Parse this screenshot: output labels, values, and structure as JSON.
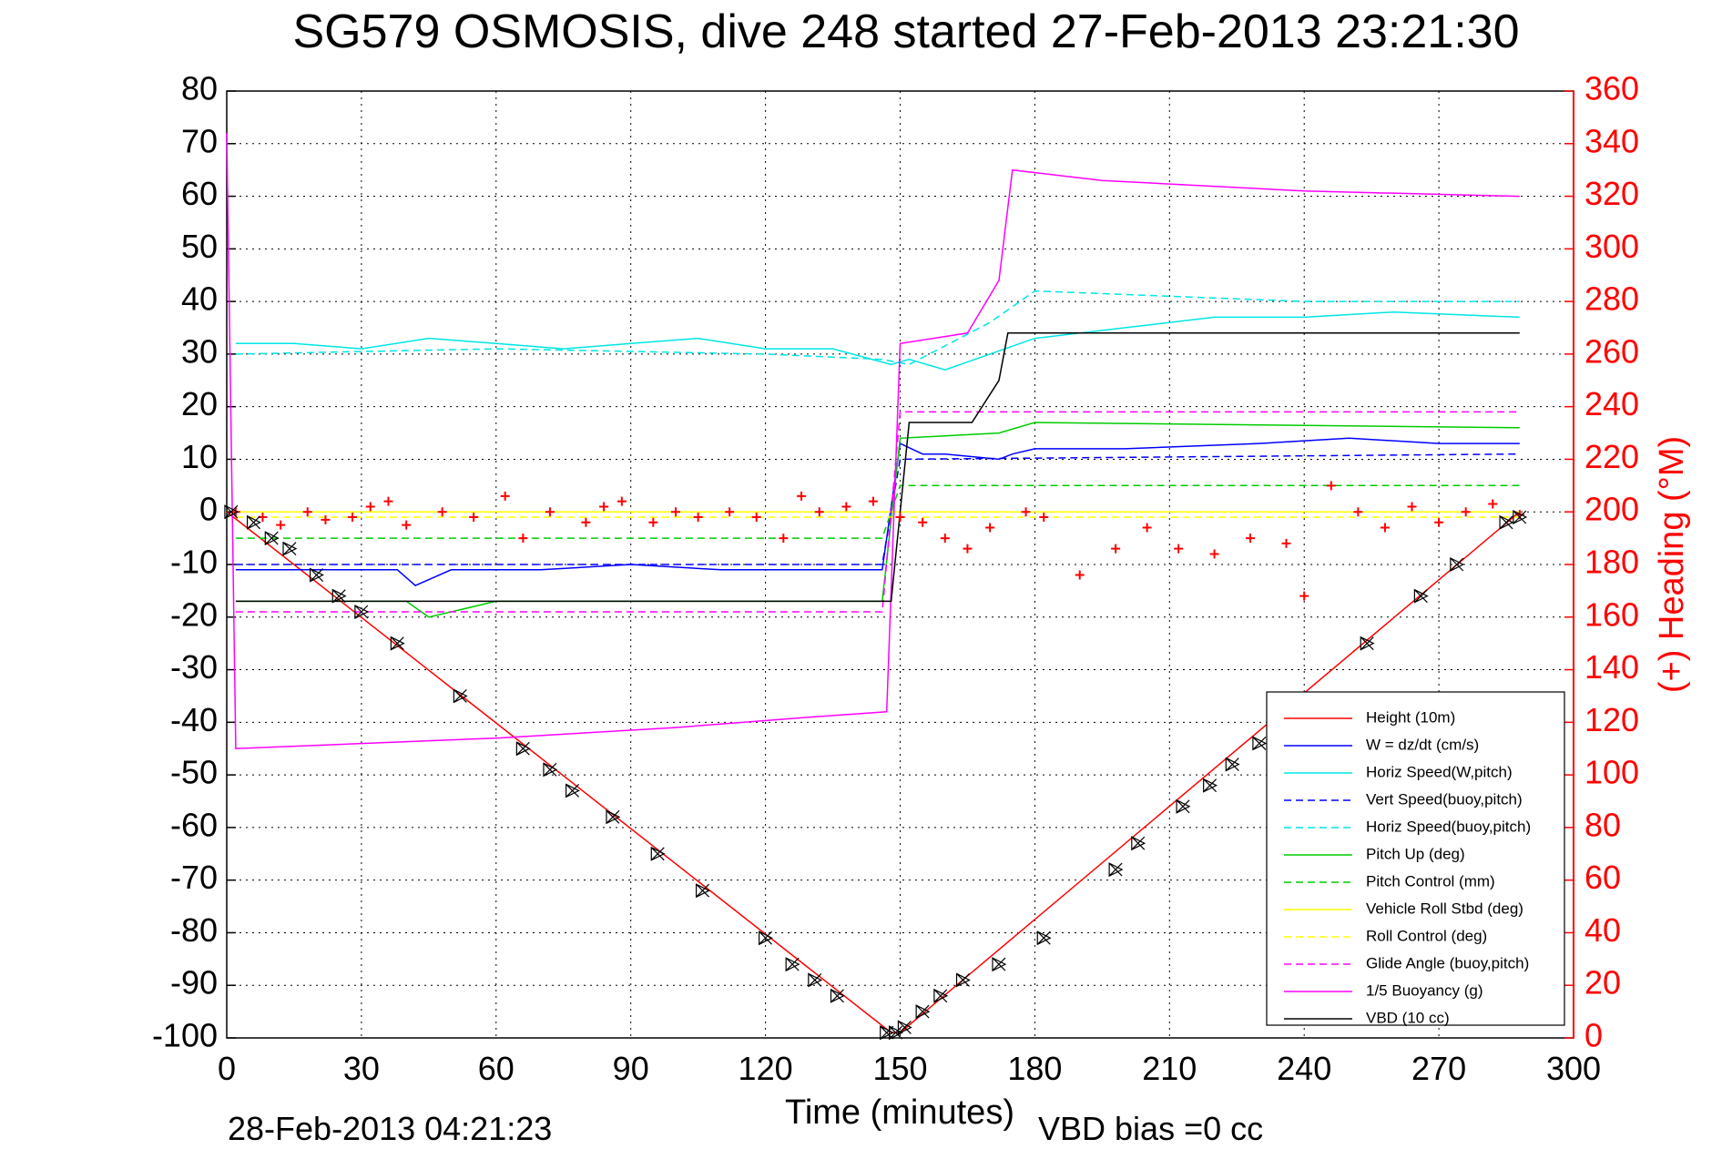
{
  "chart_data": {
    "type": "line",
    "title": "SG579 OSMOSIS, dive 248 started 27-Feb-2013 23:21:30",
    "xlabel": "Time (minutes)",
    "ylabel_right": "(+) Heading (°M)",
    "footer_left": "28-Feb-2013 04:21:23",
    "footer_right": "VBD bias =0 cc",
    "xlim": [
      0,
      300
    ],
    "ylim": [
      -100,
      80
    ],
    "ylim_right": [
      0,
      360
    ],
    "grid": true,
    "x_ticks": [
      "0",
      "30",
      "60",
      "90",
      "120",
      "150",
      "180",
      "210",
      "240",
      "270",
      "300"
    ],
    "y_ticks": [
      "80",
      "70",
      "60",
      "50",
      "40",
      "30",
      "20",
      "10",
      "0",
      "-10",
      "-20",
      "-30",
      "-40",
      "-50",
      "-60",
      "-70",
      "-80",
      "-90",
      "-100"
    ],
    "y_ticks_right": [
      "360",
      "340",
      "320",
      "300",
      "280",
      "260",
      "240",
      "220",
      "200",
      "180",
      "160",
      "140",
      "120",
      "100",
      "80",
      "60",
      "40",
      "20",
      "0"
    ],
    "legend_position": "bottom-right",
    "series": [
      {
        "name": "Height (10m)",
        "color": "#ff0000",
        "style": "solid",
        "x": [
          0,
          148,
          150,
          288
        ],
        "y": [
          0,
          -99,
          -99,
          0
        ]
      },
      {
        "name": "W = dz/dt (cm/s)",
        "color": "#0000ff",
        "style": "solid",
        "x": [
          2,
          20,
          38,
          42,
          50,
          60,
          70,
          90,
          110,
          130,
          146,
          150,
          155,
          160,
          172,
          175,
          180,
          200,
          230,
          250,
          270,
          288
        ],
        "y": [
          -11,
          -11,
          -11,
          -14,
          -11,
          -11,
          -11,
          -10,
          -11,
          -11,
          -11,
          13,
          11,
          11,
          10,
          11,
          12,
          12,
          13,
          14,
          13,
          13
        ]
      },
      {
        "name": "Horiz Speed(W,pitch)",
        "color": "#00e5e5",
        "style": "solid",
        "x": [
          2,
          15,
          30,
          45,
          60,
          75,
          90,
          105,
          120,
          135,
          148,
          152,
          160,
          170,
          180,
          200,
          220,
          240,
          260,
          288
        ],
        "y": [
          32,
          32,
          31,
          33,
          32,
          31,
          32,
          33,
          31,
          31,
          28,
          29,
          27,
          30,
          33,
          35,
          37,
          37,
          38,
          37
        ]
      },
      {
        "name": "Vert Speed(buoy,pitch)",
        "color": "#0000ff",
        "style": "dashed",
        "x": [
          2,
          146,
          150,
          288
        ],
        "y": [
          -10,
          -10,
          10,
          11
        ]
      },
      {
        "name": "Horiz Speed(buoy,pitch)",
        "color": "#00e5e5",
        "style": "dashed",
        "x": [
          2,
          60,
          120,
          146,
          152,
          170,
          180,
          240,
          288
        ],
        "y": [
          30,
          31,
          30,
          29,
          28,
          36,
          42,
          40,
          40
        ]
      },
      {
        "name": "Pitch Up (deg)",
        "color": "#00cc00",
        "style": "solid",
        "x": [
          2,
          40,
          45,
          60,
          100,
          146,
          150,
          172,
          180,
          288
        ],
        "y": [
          -17,
          -17,
          -20,
          -17,
          -17,
          -17,
          14,
          15,
          17,
          16
        ]
      },
      {
        "name": "Pitch Control (mm)",
        "color": "#00cc00",
        "style": "dashed",
        "x": [
          2,
          146,
          150,
          288
        ],
        "y": [
          -5,
          -5,
          5,
          5
        ]
      },
      {
        "name": "Vehicle Roll Stbd (deg)",
        "color": "#ffff00",
        "style": "solid",
        "x": [
          2,
          146,
          150,
          288
        ],
        "y": [
          0,
          0,
          0,
          0
        ]
      },
      {
        "name": "Roll Control (deg)",
        "color": "#ffff00",
        "style": "dashed",
        "x": [
          2,
          288
        ],
        "y": [
          -1,
          -1
        ]
      },
      {
        "name": "Glide Angle (buoy,pitch)",
        "color": "#ff00ff",
        "style": "dashed",
        "x": [
          2,
          146,
          150,
          288
        ],
        "y": [
          -19,
          -19,
          19,
          19
        ]
      },
      {
        "name": "1/5 Buoyancy (g)",
        "color": "#ff00ff",
        "style": "solid",
        "x": [
          0,
          2,
          60,
          100,
          130,
          147,
          150,
          165,
          172,
          175,
          195,
          240,
          288
        ],
        "y": [
          72,
          -45,
          -43,
          -41,
          -39,
          -38,
          32,
          34,
          44,
          65,
          63,
          61,
          60
        ]
      },
      {
        "name": "VBD (10 cc)",
        "color": "#000000",
        "style": "solid",
        "x": [
          2,
          148,
          152,
          166,
          172,
          174,
          288
        ],
        "y": [
          -17,
          -17,
          17,
          17,
          25,
          34,
          34
        ]
      }
    ],
    "heading_markers": {
      "color": "#ff0000",
      "marker": "+",
      "axis": "right",
      "x": [
        2,
        8,
        12,
        18,
        22,
        28,
        32,
        36,
        40,
        48,
        55,
        62,
        66,
        72,
        80,
        84,
        88,
        95,
        100,
        105,
        112,
        118,
        124,
        128,
        132,
        138,
        144,
        150,
        155,
        160,
        165,
        170,
        178,
        182,
        190,
        198,
        205,
        212,
        220,
        228,
        236,
        240,
        246,
        252,
        258,
        264,
        270,
        276,
        282,
        288
      ],
      "y": [
        200,
        198,
        195,
        200,
        197,
        198,
        202,
        204,
        195,
        200,
        198,
        206,
        190,
        200,
        196,
        202,
        204,
        196,
        200,
        198,
        200,
        198,
        190,
        206,
        200,
        202,
        204,
        198,
        196,
        190,
        186,
        194,
        200,
        198,
        176,
        186,
        194,
        186,
        184,
        190,
        188,
        168,
        210,
        200,
        194,
        202,
        196,
        200,
        203,
        199
      ]
    },
    "depth_markers": {
      "color": "#000000",
      "marker": "x-triangle",
      "x": [
        1,
        6,
        10,
        14,
        20,
        25,
        30,
        38,
        52,
        66,
        72,
        77,
        86,
        96,
        106,
        120,
        126,
        131,
        136,
        147,
        149,
        151,
        155,
        159,
        164,
        172,
        182,
        198,
        203,
        213,
        219,
        224,
        230,
        254,
        266,
        274,
        285,
        288
      ],
      "y": [
        0,
        -2,
        -5,
        -7,
        -12,
        -16,
        -19,
        -25,
        -35,
        -45,
        -49,
        -53,
        -58,
        -65,
        -72,
        -81,
        -86,
        -89,
        -92,
        -99,
        -99,
        -98,
        -95,
        -92,
        -89,
        -86,
        -81,
        -68,
        -63,
        -56,
        -52,
        -48,
        -44,
        -25,
        -16,
        -10,
        -2,
        -1
      ]
    }
  }
}
